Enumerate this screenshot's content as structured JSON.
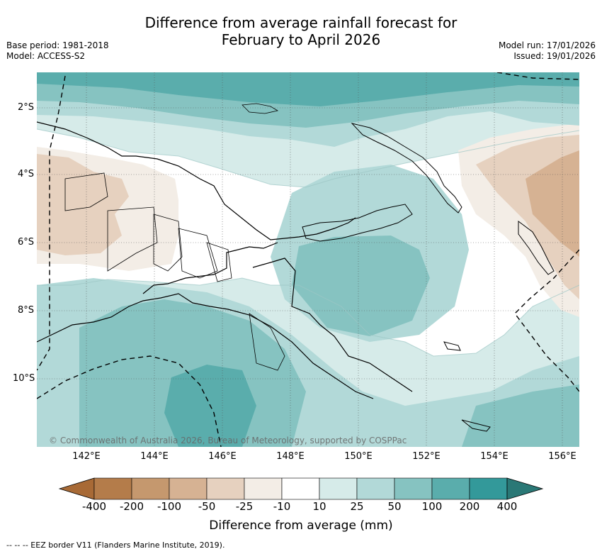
{
  "title_line1": "Difference from average rainfall forecast for",
  "title_line2": "February to April 2026",
  "base_period": "Base period: 1981-2018",
  "model": "Model: ACCESS-S2",
  "model_run": "Model run: 17/01/2026",
  "issued": "Issued: 19/01/2026",
  "copyright": "© Commonwealth of Australia 2026, Bureau of Meteorology, supported by COSPPac",
  "lat_labels": [
    "2°S",
    "4°S",
    "6°S",
    "8°S",
    "10°S"
  ],
  "lon_labels": [
    "142°E",
    "144°E",
    "146°E",
    "148°E",
    "150°E",
    "152°E",
    "154°E",
    "156°E"
  ],
  "colorbar": {
    "title": "Difference from average (mm)",
    "ticks": [
      "-400",
      "-200",
      "-100",
      "-50",
      "-25",
      "-10",
      "10",
      "25",
      "50",
      "100",
      "200",
      "400"
    ],
    "colors": [
      "#a86a36",
      "#b47c4a",
      "#c5986e",
      "#d6b293",
      "#e6d1bf",
      "#f3ede6",
      "#ffffff",
      "#d6ebe9",
      "#b2d9d8",
      "#86c3c1",
      "#5aadac",
      "#33999a",
      "#2a7876"
    ]
  },
  "footnote": "-- -- -- EEZ border V11 (Flanders Marine Institute, 2019)."
}
